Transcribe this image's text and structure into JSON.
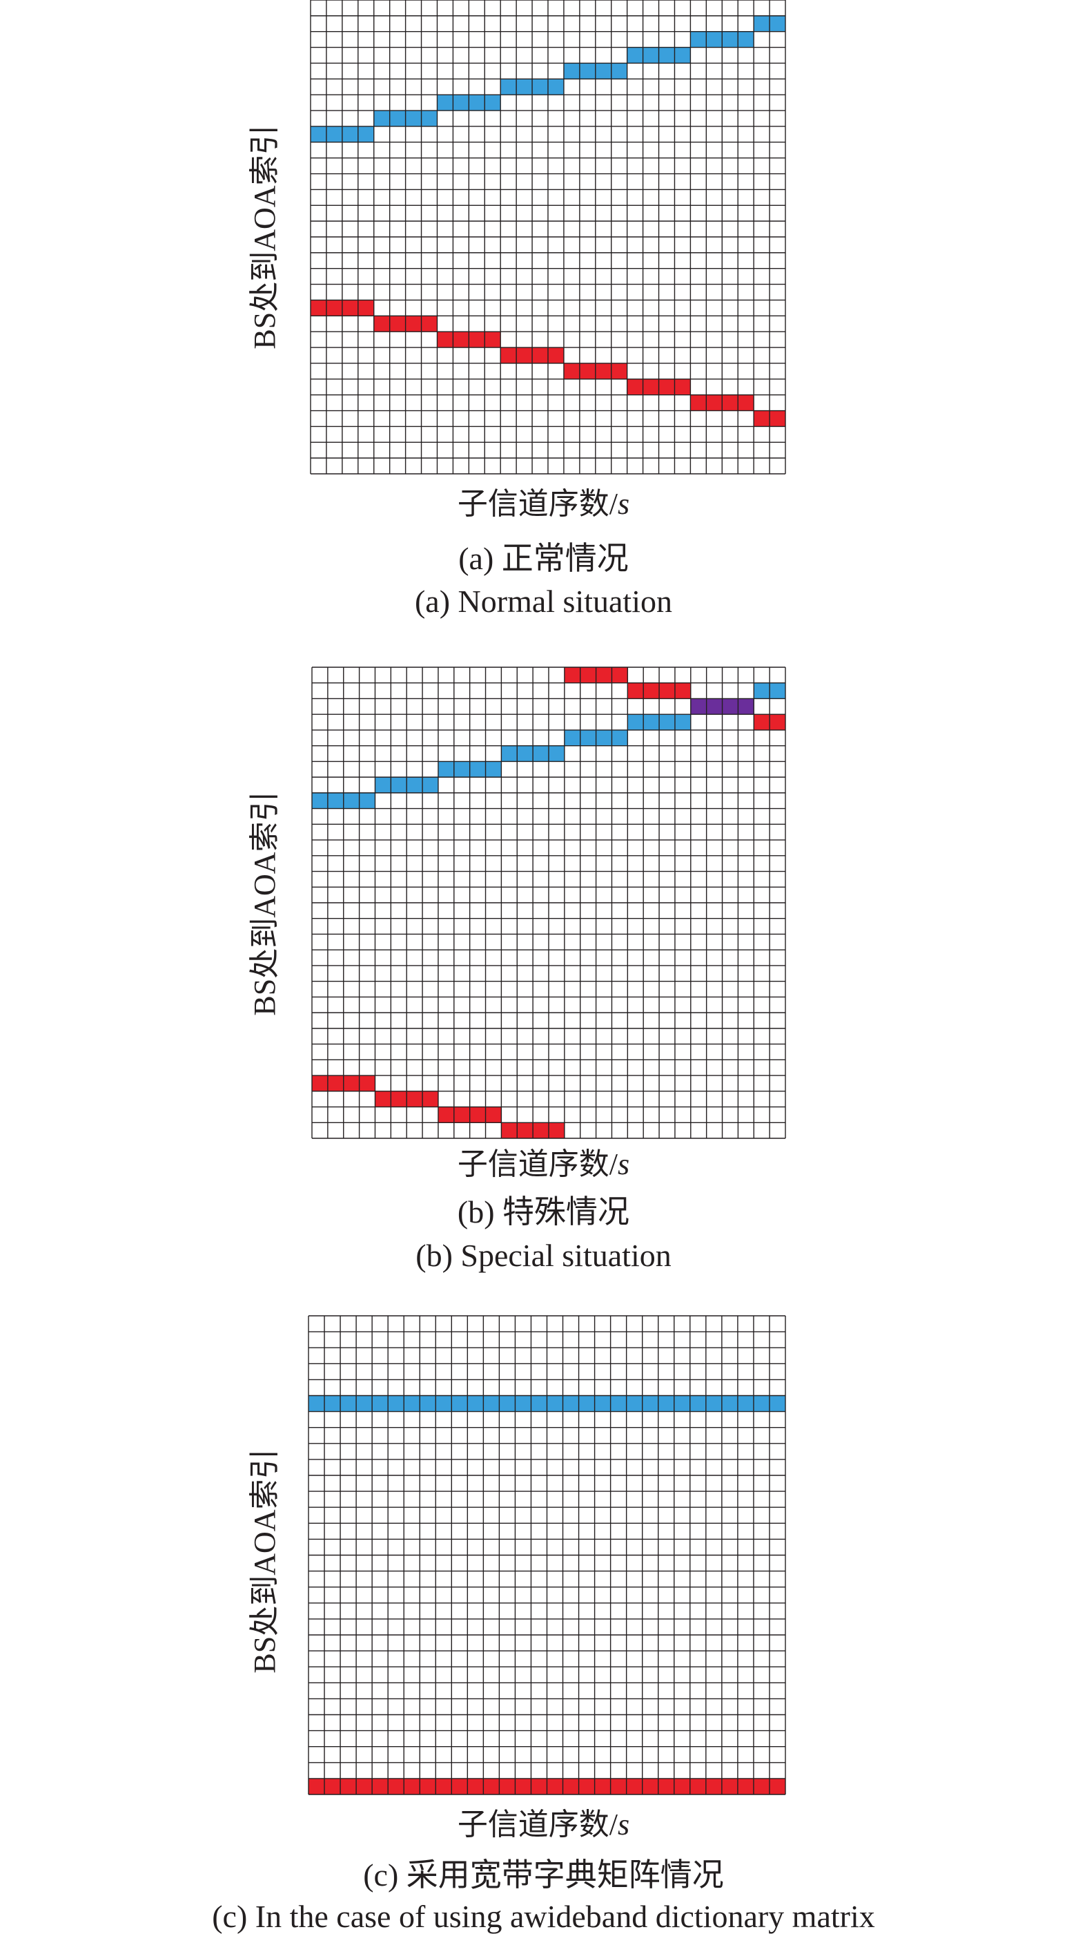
{
  "colors": {
    "blue": "#3aa0dc",
    "red": "#e8212a",
    "purple": "#6a2e9b",
    "grid": "#231f20"
  },
  "chart_data": [
    {
      "type": "heatmap",
      "title": "(a) 正常情况",
      "title_en": "(a) Normal situation",
      "xlabel_text": "子信道序数/",
      "xlabel_var": "s",
      "ylabel": "BS处到AOA索引",
      "grid": true,
      "n_cols": 30,
      "n_rows": 30,
      "highlights": [
        {
          "color": "blue",
          "row": 8,
          "col_start": 0,
          "col_end": 3
        },
        {
          "color": "blue",
          "row": 7,
          "col_start": 4,
          "col_end": 7
        },
        {
          "color": "blue",
          "row": 6,
          "col_start": 8,
          "col_end": 11
        },
        {
          "color": "blue",
          "row": 5,
          "col_start": 12,
          "col_end": 15
        },
        {
          "color": "blue",
          "row": 4,
          "col_start": 16,
          "col_end": 19
        },
        {
          "color": "blue",
          "row": 3,
          "col_start": 20,
          "col_end": 23
        },
        {
          "color": "blue",
          "row": 2,
          "col_start": 24,
          "col_end": 27
        },
        {
          "color": "blue",
          "row": 1,
          "col_start": 28,
          "col_end": 29
        },
        {
          "color": "red",
          "row": 19,
          "col_start": 0,
          "col_end": 3
        },
        {
          "color": "red",
          "row": 20,
          "col_start": 4,
          "col_end": 7
        },
        {
          "color": "red",
          "row": 21,
          "col_start": 8,
          "col_end": 11
        },
        {
          "color": "red",
          "row": 22,
          "col_start": 12,
          "col_end": 15
        },
        {
          "color": "red",
          "row": 23,
          "col_start": 16,
          "col_end": 19
        },
        {
          "color": "red",
          "row": 24,
          "col_start": 20,
          "col_end": 23
        },
        {
          "color": "red",
          "row": 25,
          "col_start": 24,
          "col_end": 27
        },
        {
          "color": "red",
          "row": 26,
          "col_start": 28,
          "col_end": 29
        }
      ]
    },
    {
      "type": "heatmap",
      "title": "(b) 特殊情况",
      "title_en": "(b) Special situation",
      "xlabel_text": "子信道序数/",
      "xlabel_var": "s",
      "ylabel": "BS处到AOA索引",
      "grid": true,
      "n_cols": 30,
      "n_rows": 30,
      "highlights": [
        {
          "color": "blue",
          "row": 8,
          "col_start": 0,
          "col_end": 3
        },
        {
          "color": "blue",
          "row": 7,
          "col_start": 4,
          "col_end": 7
        },
        {
          "color": "blue",
          "row": 6,
          "col_start": 8,
          "col_end": 11
        },
        {
          "color": "blue",
          "row": 5,
          "col_start": 12,
          "col_end": 15
        },
        {
          "color": "blue",
          "row": 4,
          "col_start": 16,
          "col_end": 19
        },
        {
          "color": "blue",
          "row": 3,
          "col_start": 20,
          "col_end": 23
        },
        {
          "color": "blue",
          "row": 1,
          "col_start": 28,
          "col_end": 29
        },
        {
          "color": "red",
          "row": 0,
          "col_start": 16,
          "col_end": 19
        },
        {
          "color": "red",
          "row": 1,
          "col_start": 20,
          "col_end": 23
        },
        {
          "color": "purple",
          "row": 2,
          "col_start": 24,
          "col_end": 27
        },
        {
          "color": "red",
          "row": 3,
          "col_start": 28,
          "col_end": 29
        },
        {
          "color": "red",
          "row": 26,
          "col_start": 0,
          "col_end": 3
        },
        {
          "color": "red",
          "row": 27,
          "col_start": 4,
          "col_end": 7
        },
        {
          "color": "red",
          "row": 28,
          "col_start": 8,
          "col_end": 11
        },
        {
          "color": "red",
          "row": 29,
          "col_start": 12,
          "col_end": 15
        }
      ]
    },
    {
      "type": "heatmap",
      "title": "(c) 采用宽带字典矩阵情况",
      "title_en": "(c) In the case of using awideband dictionary matrix",
      "xlabel_text": "子信道序数/",
      "xlabel_var": "s",
      "ylabel": "BS处到AOA索引",
      "grid": true,
      "n_cols": 30,
      "n_rows": 30,
      "highlights": [
        {
          "color": "blue",
          "row": 5,
          "col_start": 0,
          "col_end": 29
        },
        {
          "color": "red",
          "row": 29,
          "col_start": 0,
          "col_end": 29
        }
      ]
    }
  ]
}
